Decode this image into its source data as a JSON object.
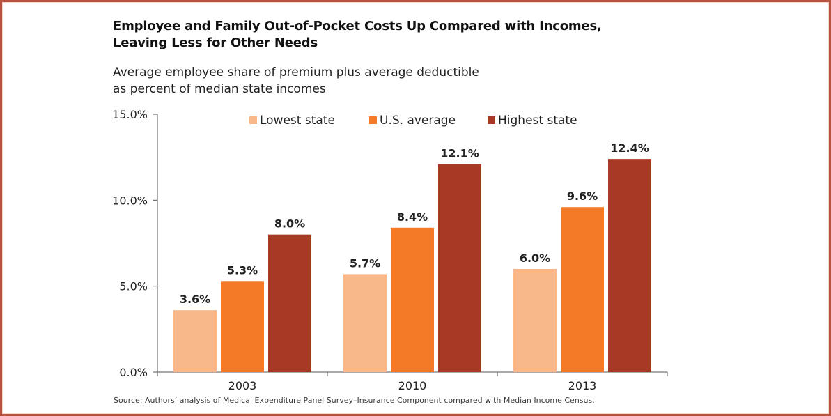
{
  "title_line1": "Employee and Family Out-of-Pocket Costs Up Compared with Incomes,",
  "title_line2": "Leaving Less for Other Needs",
  "subtitle_line1": "Average employee share of premium plus average deductible",
  "subtitle_line2": "as percent of median state incomes",
  "source": "Source: Authors’ analysis of Medical Expenditure Panel Survey–Insurance Component compared with Median Income Census.",
  "chart_data": {
    "type": "bar",
    "categories": [
      "2003",
      "2010",
      "2013"
    ],
    "series": [
      {
        "name": "Lowest state",
        "values": [
          3.6,
          5.7,
          6.0
        ],
        "labels": [
          "3.6%",
          "5.7%",
          "6.0%"
        ],
        "color": "#f8b889"
      },
      {
        "name": "U.S. average",
        "values": [
          5.3,
          8.4,
          9.6
        ],
        "labels": [
          "5.3%",
          "8.4%",
          "9.6%"
        ],
        "color": "#f47a27"
      },
      {
        "name": "Highest state",
        "values": [
          8.0,
          12.1,
          12.4
        ],
        "labels": [
          "8.0%",
          "12.1%",
          "12.4%"
        ],
        "color": "#a83a25"
      }
    ],
    "ylim": [
      0,
      15
    ],
    "yticks": [
      0,
      5,
      10,
      15
    ],
    "ytick_labels": [
      "0.0%",
      "5.0%",
      "10.0%",
      "15.0%"
    ],
    "legend_position": "top",
    "grid": false,
    "xlabel": "",
    "ylabel": ""
  }
}
